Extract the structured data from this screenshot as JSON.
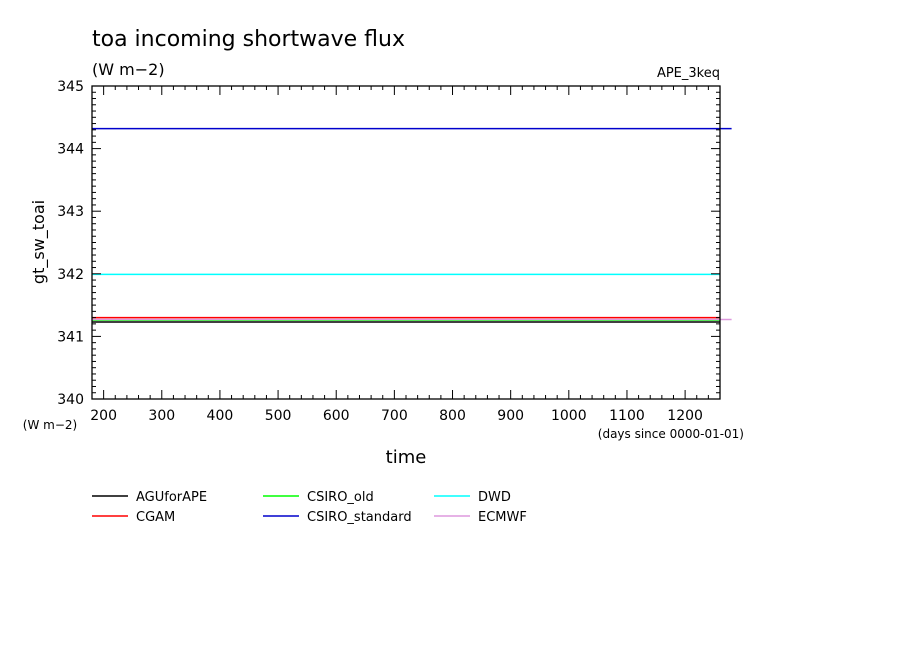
{
  "chart_data": {
    "type": "line",
    "title": "toa incoming shortwave flux",
    "subtitle": "(W m−2)",
    "experiment": "APE_3keq",
    "xlabel": "time",
    "x_units": "(days since 0000-01-01)",
    "ylabel": "gt_sw_toai",
    "y_units": "(W m−2)",
    "xlim": [
      180,
      1260
    ],
    "ylim": [
      340,
      345
    ],
    "xticks": [
      200,
      300,
      400,
      500,
      600,
      700,
      800,
      900,
      1000,
      1100,
      1200
    ],
    "yticks": [
      340,
      341,
      342,
      343,
      344,
      345
    ],
    "grid": false,
    "legend_position": "bottom",
    "series": [
      {
        "name": "AGUforAPE",
        "color": "#000000",
        "x": [
          180,
          1260
        ],
        "y": [
          341.23,
          341.23
        ]
      },
      {
        "name": "CGAM",
        "color": "#ff0000",
        "x": [
          180,
          1260
        ],
        "y": [
          341.3,
          341.3
        ]
      },
      {
        "name": "CSIRO_old",
        "color": "#00ff00",
        "x": [
          180,
          1260
        ],
        "y": [
          341.26,
          341.26
        ]
      },
      {
        "name": "CSIRO_standard",
        "color": "#0000cc",
        "x": [
          180,
          1280
        ],
        "y": [
          344.32,
          344.32
        ]
      },
      {
        "name": "DWD",
        "color": "#00ffff",
        "x": [
          180,
          1260
        ],
        "y": [
          341.99,
          341.99
        ]
      },
      {
        "name": "ECMWF",
        "color": "#dd99dd",
        "x": [
          180,
          1280
        ],
        "y": [
          341.27,
          341.27
        ]
      }
    ]
  }
}
